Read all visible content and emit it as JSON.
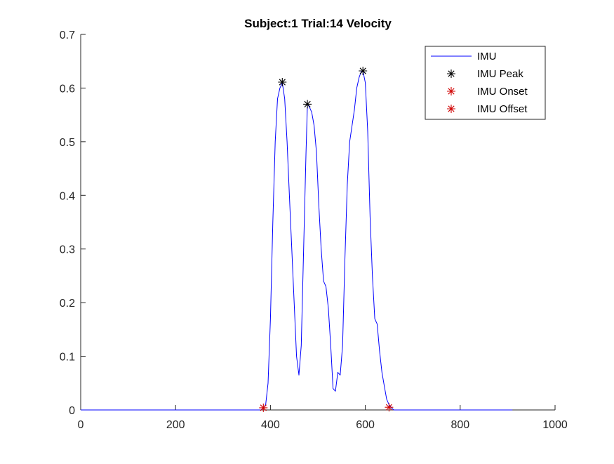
{
  "chart_data": {
    "type": "line",
    "title": "Subject:1 Trial:14 Velocity",
    "xlabel": "",
    "ylabel": "",
    "xlim": [
      0,
      1000
    ],
    "ylim": [
      0,
      0.7
    ],
    "xticks": [
      0,
      200,
      400,
      600,
      800,
      1000
    ],
    "xtick_labels": [
      "0",
      "200",
      "400",
      "600",
      "800",
      "1000"
    ],
    "yticks": [
      0,
      0.1,
      0.2,
      0.3,
      0.4,
      0.5,
      0.6,
      0.7
    ],
    "ytick_labels": [
      "0",
      "0.1",
      "0.2",
      "0.3",
      "0.4",
      "0.5",
      "0.6",
      "0.7"
    ],
    "grid": false,
    "legend_position": "top-right",
    "colors": {
      "line": "#0000ff",
      "peak": "#000000",
      "onset": "#d00000",
      "offset": "#d00000",
      "axis": "#262626"
    },
    "series": [
      {
        "name": "IMU",
        "kind": "line",
        "x": [
          0,
          100,
          200,
          300,
          380,
          385,
          390,
          395,
          400,
          405,
          410,
          415,
          420,
          425,
          430,
          435,
          440,
          445,
          450,
          455,
          460,
          465,
          470,
          475,
          478,
          482,
          487,
          492,
          497,
          502,
          507,
          512,
          517,
          522,
          527,
          532,
          537,
          542,
          547,
          552,
          557,
          562,
          567,
          572,
          577,
          582,
          587,
          592,
          595,
          600,
          605,
          610,
          615,
          620,
          625,
          630,
          635,
          640,
          645,
          650,
          655,
          660,
          700,
          800,
          910
        ],
        "y": [
          0,
          0,
          0,
          0,
          0.0,
          0.003,
          0.01,
          0.05,
          0.17,
          0.35,
          0.5,
          0.58,
          0.6,
          0.61,
          0.58,
          0.5,
          0.4,
          0.3,
          0.2,
          0.1,
          0.065,
          0.12,
          0.3,
          0.48,
          0.57,
          0.565,
          0.555,
          0.53,
          0.48,
          0.38,
          0.3,
          0.24,
          0.23,
          0.19,
          0.12,
          0.04,
          0.035,
          0.07,
          0.065,
          0.12,
          0.28,
          0.42,
          0.5,
          0.53,
          0.56,
          0.6,
          0.62,
          0.632,
          0.632,
          0.61,
          0.52,
          0.36,
          0.25,
          0.17,
          0.16,
          0.11,
          0.07,
          0.045,
          0.02,
          0.01,
          0.004,
          0.0,
          0,
          0,
          0
        ]
      },
      {
        "name": "IMU Peak",
        "kind": "marker",
        "x": [
          425,
          478,
          595
        ],
        "y": [
          0.611,
          0.57,
          0.632
        ]
      },
      {
        "name": "IMU Onset",
        "kind": "marker",
        "x": [
          385
        ],
        "y": [
          0.004
        ]
      },
      {
        "name": "IMU Offset",
        "kind": "marker",
        "x": [
          650
        ],
        "y": [
          0.005
        ]
      }
    ]
  }
}
